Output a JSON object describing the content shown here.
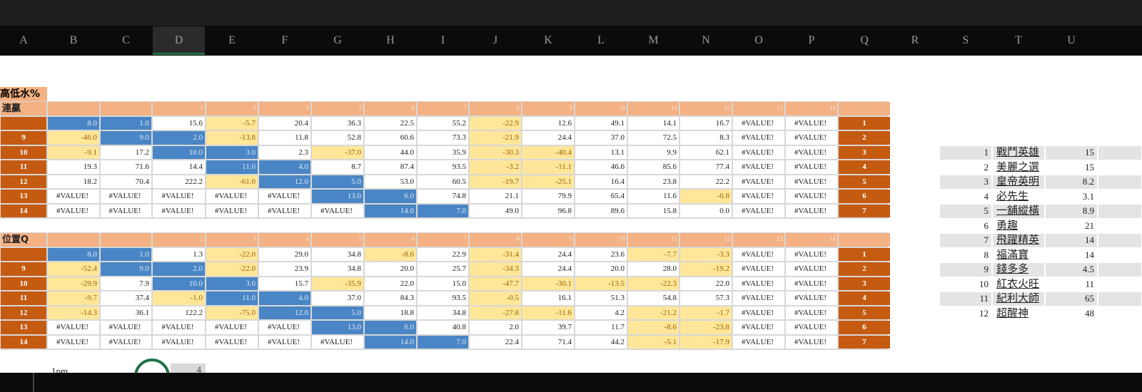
{
  "column_headers": [
    "A",
    "B",
    "C",
    "D",
    "E",
    "F",
    "G",
    "H",
    "I",
    "J",
    "K",
    "L",
    "M",
    "N",
    "O",
    "P",
    "Q",
    "R",
    "S",
    "T",
    "U"
  ],
  "section_title": "高低水%",
  "tables": [
    {
      "title": "連贏",
      "header_numbers": [
        2,
        3,
        4,
        5,
        6,
        7,
        8,
        9,
        10,
        11,
        12,
        13,
        14
      ],
      "rows": [
        {
          "label": null,
          "cells": [
            "8.0",
            "1.0",
            "15.6",
            "-5.7",
            "20.4",
            "36.3",
            "22.5",
            "55.2",
            "-22.9",
            "12.6",
            "49.1",
            "14.1",
            "16.7",
            "#VALUE!",
            "#VALUE!"
          ],
          "index": 1
        },
        {
          "label": 9,
          "cells": [
            "-46.0",
            "9.0",
            "2.0",
            "-13.8",
            "11.8",
            "52.8",
            "60.6",
            "73.3",
            "-21.9",
            "24.4",
            "37.0",
            "72.5",
            "8.3",
            "#VALUE!",
            "#VALUE!"
          ],
          "index": 2
        },
        {
          "label": 10,
          "cells": [
            "-9.1",
            "17.2",
            "10.0",
            "3.0",
            "2.3",
            "-37.0",
            "44.0",
            "35.9",
            "-30.3",
            "-40.4",
            "13.1",
            "9.9",
            "62.1",
            "#VALUE!",
            "#VALUE!"
          ],
          "index": 3
        },
        {
          "label": 11,
          "cells": [
            "19.3",
            "71.6",
            "14.4",
            "11.0",
            "4.0",
            "8.7",
            "87.4",
            "93.5",
            "-3.2",
            "-11.1",
            "46.6",
            "85.6",
            "77.4",
            "#VALUE!",
            "#VALUE!"
          ],
          "index": 4
        },
        {
          "label": 12,
          "cells": [
            "18.2",
            "70.4",
            "222.2",
            "-61.0",
            "12.0",
            "5.0",
            "53.0",
            "60.5",
            "-19.7",
            "-25.1",
            "16.4",
            "23.8",
            "22.2",
            "#VALUE!",
            "#VALUE!"
          ],
          "index": 5
        },
        {
          "label": 13,
          "cells": [
            "#VALUE!",
            "#VALUE!",
            "#VALUE!",
            "#VALUE!",
            "#VALUE!",
            "13.0",
            "6.0",
            "74.8",
            "21.1",
            "79.9",
            "65.4",
            "11.6",
            "-0.8",
            "#VALUE!",
            "#VALUE!"
          ],
          "index": 6
        },
        {
          "label": 14,
          "cells": [
            "#VALUE!",
            "#VALUE!",
            "#VALUE!",
            "#VALUE!",
            "#VALUE!",
            "#VALUE!",
            "14.0",
            "7.0",
            "49.0",
            "96.8",
            "89.6",
            "15.8",
            "0.0",
            "#VALUE!",
            "#VALUE!"
          ],
          "index": 7
        }
      ]
    },
    {
      "title": "位置Q",
      "header_numbers": [
        2,
        3,
        4,
        5,
        6,
        7,
        8,
        9,
        10,
        11,
        12,
        13,
        14
      ],
      "rows": [
        {
          "label": null,
          "cells": [
            "8.0",
            "1.0",
            "1.3",
            "-22.0",
            "29.0",
            "34.8",
            "-8.6",
            "22.9",
            "-31.4",
            "24.4",
            "23.6",
            "-7.7",
            "-3.3",
            "#VALUE!",
            "#VALUE!"
          ],
          "index": 1
        },
        {
          "label": 9,
          "cells": [
            "-52.4",
            "9.0",
            "2.0",
            "-22.0",
            "23.9",
            "34.8",
            "20.0",
            "25.7",
            "-34.3",
            "24.4",
            "20.0",
            "28.0",
            "-19.2",
            "#VALUE!",
            "#VALUE!"
          ],
          "index": 2
        },
        {
          "label": 10,
          "cells": [
            "-29.9",
            "7.9",
            "10.0",
            "3.0",
            "15.7",
            "-35.9",
            "22.0",
            "15.0",
            "-47.7",
            "-30.1",
            "-13.5",
            "-22.3",
            "22.0",
            "#VALUE!",
            "#VALUE!"
          ],
          "index": 3
        },
        {
          "label": 11,
          "cells": [
            "-9.7",
            "37.4",
            "-1.0",
            "11.0",
            "4.0",
            "37.0",
            "84.3",
            "93.5",
            "-0.5",
            "16.1",
            "51.3",
            "54.8",
            "57.3",
            "#VALUE!",
            "#VALUE!"
          ],
          "index": 4
        },
        {
          "label": 12,
          "cells": [
            "-14.3",
            "36.1",
            "122.2",
            "-75.0",
            "12.0",
            "5.0",
            "18.8",
            "34.8",
            "-27.8",
            "-11.6",
            "4.2",
            "-21.2",
            "-1.7",
            "#VALUE!",
            "#VALUE!"
          ],
          "index": 5
        },
        {
          "label": 13,
          "cells": [
            "#VALUE!",
            "#VALUE!",
            "#VALUE!",
            "#VALUE!",
            "#VALUE!",
            "13.0",
            "6.0",
            "40.8",
            "2.0",
            "39.7",
            "11.7",
            "-8.6",
            "-23.8",
            "#VALUE!",
            "#VALUE!"
          ],
          "index": 6
        },
        {
          "label": 14,
          "cells": [
            "#VALUE!",
            "#VALUE!",
            "#VALUE!",
            "#VALUE!",
            "#VALUE!",
            "#VALUE!",
            "14.0",
            "7.0",
            "22.4",
            "71.4",
            "44.2",
            "-5.1",
            "-17.9",
            "#VALUE!",
            "#VALUE!"
          ],
          "index": 7
        }
      ]
    }
  ],
  "ranking": [
    {
      "no": 1,
      "name": "戰鬥英雄",
      "value": 15
    },
    {
      "no": 2,
      "name": "美麗之選",
      "value": 15
    },
    {
      "no": 3,
      "name": "皇帝英明",
      "value": 8.2
    },
    {
      "no": 4,
      "name": "必先生",
      "value": 3.1
    },
    {
      "no": 5,
      "name": "一舖縱橫",
      "value": 8.9
    },
    {
      "no": 6,
      "name": "勇趣",
      "value": 21
    },
    {
      "no": 7,
      "name": "飛躍精英",
      "value": 14
    },
    {
      "no": 8,
      "name": "福滿寶",
      "value": 14
    },
    {
      "no": 9,
      "name": "錢多多",
      "value": 4.5
    },
    {
      "no": 10,
      "name": "紅衣火旺",
      "value": 11
    },
    {
      "no": 11,
      "name": "紀利大師",
      "value": 65
    },
    {
      "no": 12,
      "name": "超醒神",
      "value": 48
    }
  ],
  "time_label": "1pm",
  "counter": 4
}
